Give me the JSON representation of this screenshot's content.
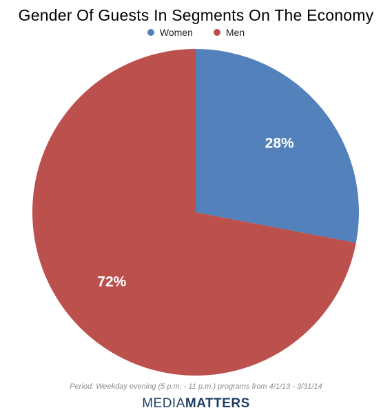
{
  "chart_data": {
    "type": "pie",
    "title": "Gender Of Guests In Segments On The Economy",
    "legend_position": "top-center",
    "slices": [
      {
        "name": "Women",
        "value": 28,
        "label": "28%",
        "color": "#5381bb"
      },
      {
        "name": "Men",
        "value": 72,
        "label": "72%",
        "color": "#bc504d"
      }
    ]
  },
  "footnote": "Period: Weekday evening (5 p.m. - 11 p.m.) programs from 4/1/13 - 3/31/14",
  "brand": {
    "part1": "MEDIA",
    "part2": "MATTERS"
  }
}
